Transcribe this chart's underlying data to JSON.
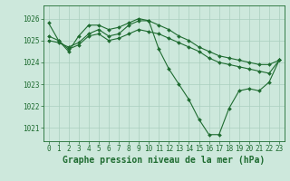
{
  "background_color": "#cde8dc",
  "grid_color": "#aacfbe",
  "line_color": "#1e6b30",
  "title": "Graphe pression niveau de la mer (hPa)",
  "xlim": [
    -0.5,
    23.5
  ],
  "ylim": [
    1020.4,
    1026.6
  ],
  "yticks": [
    1021,
    1022,
    1023,
    1024,
    1025,
    1026
  ],
  "ylim_top_label": "1026",
  "xticks": [
    0,
    1,
    2,
    3,
    4,
    5,
    6,
    7,
    8,
    9,
    10,
    11,
    12,
    13,
    14,
    15,
    16,
    17,
    18,
    19,
    20,
    21,
    22,
    23
  ],
  "series": [
    {
      "x": [
        0,
        1,
        2,
        3,
        4,
        5,
        6,
        7,
        8,
        9,
        10,
        11,
        12,
        13,
        14,
        15,
        16,
        17,
        18,
        19,
        20,
        21,
        22,
        23
      ],
      "y": [
        1025.8,
        1025.0,
        1024.5,
        1025.2,
        1025.7,
        1025.7,
        1025.5,
        1025.6,
        1025.8,
        1026.0,
        1025.9,
        1024.6,
        1023.7,
        1023.0,
        1022.3,
        1021.4,
        1020.7,
        1020.7,
        1021.9,
        1022.7,
        1022.8,
        1022.7,
        1023.1,
        1024.1
      ]
    },
    {
      "x": [
        0,
        1,
        2,
        3,
        4,
        5,
        6,
        7,
        8,
        9,
        10,
        11,
        12,
        13,
        14,
        15,
        16,
        17,
        18,
        19,
        20,
        21,
        22,
        23
      ],
      "y": [
        1025.2,
        1025.0,
        1024.6,
        1024.8,
        1025.2,
        1025.3,
        1025.0,
        1025.1,
        1025.3,
        1025.5,
        1025.4,
        1025.3,
        1025.1,
        1024.9,
        1024.7,
        1024.5,
        1024.2,
        1024.0,
        1023.9,
        1023.8,
        1023.7,
        1023.6,
        1023.5,
        1024.1
      ]
    },
    {
      "x": [
        0,
        1,
        2,
        3,
        4,
        5,
        6,
        7,
        8,
        9,
        10,
        11,
        12,
        13,
        14,
        15,
        16,
        17,
        18,
        19,
        20,
        21,
        22,
        23
      ],
      "y": [
        1025.0,
        1024.9,
        1024.7,
        1024.9,
        1025.3,
        1025.5,
        1025.2,
        1025.3,
        1025.7,
        1025.9,
        1025.9,
        1025.7,
        1025.5,
        1025.2,
        1025.0,
        1024.7,
        1024.5,
        1024.3,
        1024.2,
        1024.1,
        1024.0,
        1023.9,
        1023.9,
        1024.1
      ]
    }
  ],
  "title_fontsize": 7,
  "tick_fontsize": 5.5,
  "marker": "D",
  "markersize": 2.0,
  "linewidth": 0.8
}
